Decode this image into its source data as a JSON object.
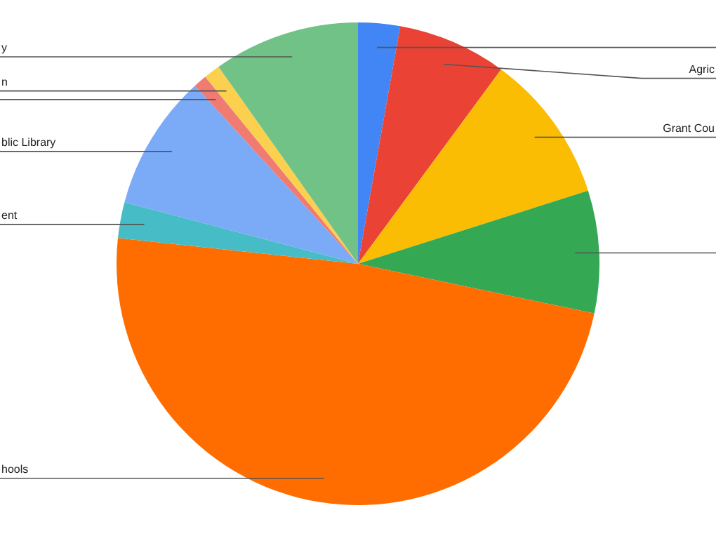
{
  "chart_data": {
    "type": "pie",
    "categories": [
      null,
      "Agric",
      "Grant Cou",
      null,
      "hools",
      "ent",
      "blic Library",
      null,
      "n",
      "y"
    ],
    "values": [
      2.8,
      7.3,
      10.0,
      8.2,
      48.4,
      2.4,
      9.1,
      0.9,
      1.1,
      9.8
    ],
    "colors": [
      "#4285f4",
      "#ea4335",
      "#fbbc04",
      "#34a853",
      "#ff6d01",
      "#46bdc6",
      "#7baaf7",
      "#f07b72",
      "#fcd04f",
      "#71c287"
    ],
    "legend": false
  }
}
